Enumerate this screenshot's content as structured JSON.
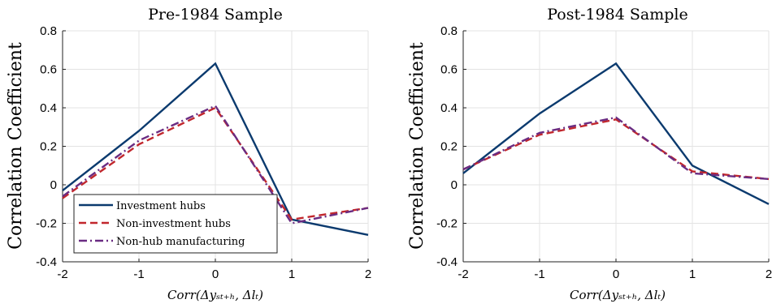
{
  "colors": {
    "investment": "#0b3a6e",
    "noninvestment": "#c1272d",
    "nonhub": "#6a2c82",
    "grid": "#e3e3e3"
  },
  "chart_data": [
    {
      "type": "line",
      "title": "Pre-1984 Sample",
      "ylabel": "Correlation Coefficient",
      "xlabel": "Corr(Δy_{st+h}, Δl_t)",
      "xlabel_display": "Corr(Δyₛₜ₊ₕ, Δlₜ)",
      "x": [
        -2,
        -1,
        0,
        1,
        2
      ],
      "xlim": [
        -2,
        2
      ],
      "ylim": [
        -0.4,
        0.8
      ],
      "xticks": [
        "-2",
        "-1",
        "0",
        "1",
        "2"
      ],
      "yticks": [
        "-0.4",
        "-0.2",
        "0",
        "0.2",
        "0.4",
        "0.6",
        "0.8"
      ],
      "grid": true,
      "legend_position": "bottom-left",
      "series": [
        {
          "name": "Investment hubs",
          "style": "solid",
          "values": [
            -0.03,
            0.28,
            0.63,
            -0.18,
            -0.26
          ]
        },
        {
          "name": "Non-investment hubs",
          "style": "dashed",
          "values": [
            -0.07,
            0.21,
            0.4,
            -0.18,
            -0.12
          ]
        },
        {
          "name": "Non-hub manufacturing",
          "style": "dashdot",
          "values": [
            -0.06,
            0.23,
            0.41,
            -0.2,
            -0.12
          ]
        }
      ]
    },
    {
      "type": "line",
      "title": "Post-1984 Sample",
      "ylabel": "Correlation Coefficient",
      "xlabel": "Corr(Δy_{st+h}, Δl_t)",
      "xlabel_display": "Corr(Δyₛₜ₊ₕ, Δlₜ)",
      "x": [
        -2,
        -1,
        0,
        1,
        2
      ],
      "xlim": [
        -2,
        2
      ],
      "ylim": [
        -0.4,
        0.8
      ],
      "xticks": [
        "-2",
        "-1",
        "0",
        "1",
        "2"
      ],
      "yticks": [
        "-0.4",
        "-0.2",
        "0",
        "0.2",
        "0.4",
        "0.6",
        "0.8"
      ],
      "grid": true,
      "series": [
        {
          "name": "Investment hubs",
          "style": "solid",
          "values": [
            0.06,
            0.37,
            0.63,
            0.1,
            -0.1
          ]
        },
        {
          "name": "Non-investment hubs",
          "style": "dashed",
          "values": [
            0.08,
            0.26,
            0.34,
            0.07,
            0.03
          ]
        },
        {
          "name": "Non-hub manufacturing",
          "style": "dashdot",
          "values": [
            0.08,
            0.27,
            0.35,
            0.06,
            0.03
          ]
        }
      ]
    }
  ]
}
